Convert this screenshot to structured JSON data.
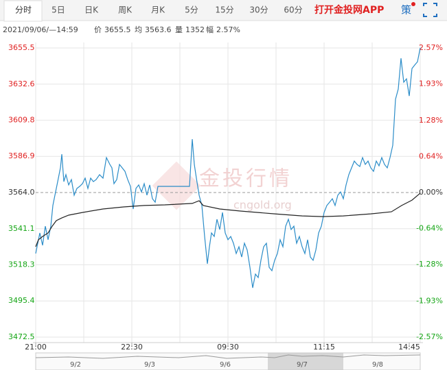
{
  "tabs": [
    "分时",
    "5日",
    "日K",
    "周K",
    "月K",
    "5分",
    "15分",
    "30分",
    "60分"
  ],
  "app_button": "打开金投网APP",
  "strategy": "策",
  "info": {
    "date": "2021/09/06/—14:59",
    "items": [
      {
        "label": "价",
        "value": 3655.5
      },
      {
        "label": "均",
        "value": 3563.6
      },
      {
        "label": "量",
        "value": 1352
      },
      {
        "label": "幅",
        "value": {
          "value": 2.57,
          "label": "2.57%"
        }
      }
    ]
  },
  "chart_data": {
    "type": "line",
    "watermark": "金投行情",
    "watermark_url": "cngold.org",
    "xlim": [
      0,
      280
    ],
    "xticks": [
      {
        "value": 0,
        "label": "21:00"
      },
      {
        "value": 70,
        "label": "22:30"
      },
      {
        "value": 140,
        "label": "09:30"
      },
      {
        "value": 210,
        "label": "11:15"
      },
      {
        "value": 272,
        "label": "14:45"
      }
    ],
    "ylim": [
      3472.5,
      3655.5
    ],
    "yticks": [
      3472.5,
      3495.4,
      3518.3,
      3541.1,
      {
        "value": 3564,
        "label": "3564.0"
      },
      3586.9,
      3609.8,
      3632.6,
      3655.5
    ],
    "y2lim": [
      -2.57,
      2.57
    ],
    "y2ticks": [
      {
        "value": -2.57,
        "label": "-2.57%"
      },
      {
        "value": -1.93,
        "label": "-1.93%"
      },
      {
        "value": -1.28,
        "label": "-1.28%"
      },
      {
        "value": -0.64,
        "label": "-0.64%"
      },
      {
        "value": 0,
        "label": "0.00%"
      },
      {
        "value": 0.64,
        "label": "0.64%"
      },
      {
        "value": 1.28,
        "label": "1.28%"
      },
      {
        "value": 1.93,
        "label": "1.93%"
      },
      {
        "value": 2.57,
        "label": "2.57%"
      }
    ],
    "grid": true,
    "up_color": "#e02020",
    "down_color": "#14a514",
    "series": [
      {
        "color": "#2a8cc8",
        "x": [
          0,
          1.5,
          3,
          5,
          7,
          9,
          11,
          12.5,
          14,
          16,
          18,
          19,
          20.5,
          22,
          24,
          26,
          28,
          30,
          32,
          34,
          36,
          38,
          40,
          42,
          44,
          46.5,
          49,
          51.5,
          54,
          55.5,
          57,
          59,
          61,
          63,
          65,
          67,
          69,
          71,
          73,
          75,
          77,
          79,
          81,
          83,
          85,
          87,
          89,
          112,
          114,
          115.5,
          117,
          119,
          121,
          123,
          125,
          126.5,
          128,
          130,
          132,
          134,
          136,
          138,
          140,
          142,
          144,
          146,
          148,
          150,
          152,
          154,
          156,
          158,
          160,
          162,
          164,
          166,
          168,
          170,
          172,
          174,
          176,
          178,
          180,
          182,
          184,
          186,
          188,
          190,
          192,
          194,
          196,
          198,
          200,
          202,
          204,
          206,
          208,
          210,
          212,
          214,
          216,
          218,
          220,
          222,
          224,
          226,
          228,
          230,
          232,
          234,
          236,
          238,
          240,
          242,
          244,
          246,
          248,
          250,
          252,
          254,
          256,
          258,
          260,
          262,
          264,
          266,
          268,
          270,
          272,
          274,
          276,
          278,
          280
        ],
        "values": [
          3525.4,
          3531.9,
          3538.4,
          3530.6,
          3542.7,
          3534.1,
          3542.7,
          3555.8,
          3562.3,
          3570.9,
          3579.6,
          3588.3,
          3570.9,
          3575.3,
          3568.8,
          3572.2,
          3562.3,
          3566.6,
          3567.9,
          3569.6,
          3573.1,
          3566.6,
          3573.1,
          3570.9,
          3572.2,
          3575.3,
          3573.1,
          3586.1,
          3581.8,
          3579.6,
          3569.6,
          3572.2,
          3581.8,
          3579.6,
          3577.4,
          3572.2,
          3567.9,
          3553.6,
          3566.6,
          3568.8,
          3564.4,
          3569.6,
          3562.3,
          3568.8,
          3560.1,
          3557.9,
          3567.9,
          3567.9,
          3597.8,
          3581.8,
          3573.1,
          3562.3,
          3555.8,
          3536.2,
          3518.9,
          3529.7,
          3538.4,
          3536.2,
          3547.1,
          3540.6,
          3551.4,
          3538.4,
          3534.1,
          3536.2,
          3531.9,
          3525.4,
          3529.7,
          3523.2,
          3531.9,
          3527.6,
          3516.7,
          3503.7,
          3512.4,
          3510.2,
          3521.1,
          3529.7,
          3531.9,
          3516.7,
          3514.5,
          3521.1,
          3525.4,
          3534.1,
          3529.7,
          3542.7,
          3547.1,
          3540.6,
          3542.7,
          3531.9,
          3536.2,
          3529.7,
          3525.4,
          3534.1,
          3523.2,
          3521.1,
          3527.6,
          3538.4,
          3542.7,
          3551.4,
          3555.8,
          3557.9,
          3560.1,
          3555.8,
          3562.3,
          3564.4,
          3560.1,
          3568.8,
          3575.3,
          3579.6,
          3583.9,
          3581.8,
          3580.5,
          3586.1,
          3581.8,
          3583.9,
          3579.6,
          3577.4,
          3583.9,
          3580.9,
          3586.1,
          3581.8,
          3579.6,
          3586.1,
          3593.9,
          3623.0,
          3629.5,
          3649.0,
          3633.8,
          3636.0,
          3625.1,
          3642.5,
          3644.7,
          3646.8,
          3655.5
        ]
      },
      {
        "color": "#222222",
        "x": [
          0,
          2,
          5,
          9,
          12,
          15,
          19,
          24,
          34,
          49,
          64,
          79,
          94,
          114,
          119,
          122,
          134,
          149,
          174,
          194,
          209,
          224,
          244,
          259,
          266.5,
          274,
          280
        ],
        "values": [
          3529.7,
          3534.1,
          3536.2,
          3538.4,
          3542.7,
          3546.2,
          3547.9,
          3549.7,
          3551.4,
          3553.6,
          3554.9,
          3555.8,
          3556.2,
          3557.1,
          3558.8,
          3555.8,
          3553.6,
          3552.3,
          3550.5,
          3549.2,
          3548.8,
          3549.2,
          3550.5,
          3551.8,
          3555.8,
          3559.2,
          3563.6
        ]
      }
    ],
    "navigator": [
      "9/2",
      "9/3",
      "9/6",
      "9/7",
      "9/8"
    ]
  }
}
